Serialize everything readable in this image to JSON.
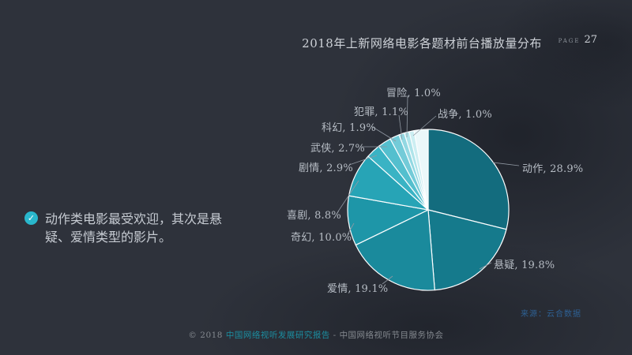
{
  "page": {
    "label": "PAGE",
    "number": "27"
  },
  "chart_data": {
    "type": "pie",
    "title": "2018年上新网络电影各题材前台播放量分布",
    "total": 100,
    "start_angle_deg": 0,
    "direction": "clockwise",
    "legend_position": "none",
    "slices": [
      {
        "label": "动作",
        "value": 28.9,
        "display": "动作, 28.9%",
        "color": "#136c7e",
        "labeled": true
      },
      {
        "label": "悬疑",
        "value": 19.8,
        "display": "悬疑, 19.8%",
        "color": "#157a8c",
        "labeled": true
      },
      {
        "label": "爱情",
        "value": 19.1,
        "display": "爱情, 19.1%",
        "color": "#1a8a9c",
        "labeled": true
      },
      {
        "label": "奇幻",
        "value": 10.0,
        "display": "奇幻, 10.0%",
        "color": "#1e96a8",
        "labeled": true
      },
      {
        "label": "喜剧",
        "value": 8.8,
        "display": "喜剧, 8.8%",
        "color": "#27a4b6",
        "labeled": true
      },
      {
        "label": "剧情",
        "value": 2.9,
        "display": "剧情, 2.9%",
        "color": "#3ab3c4",
        "labeled": true
      },
      {
        "label": "武侠",
        "value": 2.7,
        "display": "武侠, 2.7%",
        "color": "#54bfce",
        "labeled": true
      },
      {
        "label": "科幻",
        "value": 1.9,
        "display": "科幻, 1.9%",
        "color": "#73cbd8",
        "labeled": true
      },
      {
        "label": "犯罪",
        "value": 1.1,
        "display": "犯罪, 1.1%",
        "color": "#92d8e2",
        "labeled": true
      },
      {
        "label": "冒险",
        "value": 1.0,
        "display": "冒险, 1.0%",
        "color": "#afe4ea",
        "labeled": true
      },
      {
        "label": "战争",
        "value": 1.0,
        "display": "战争, 1.0%",
        "color": "#cceef2",
        "labeled": true
      },
      {
        "label": "",
        "value": 2.8,
        "display": "",
        "color": "#ebf8fa",
        "labeled": false
      }
    ]
  },
  "note": {
    "text": "动作类电影最受欢迎，其次是悬疑、爱情类型的影片。"
  },
  "source": "来源：云合数据",
  "footer": {
    "prefix": "© 2018 ",
    "report": "中国网络视听发展研究报告",
    "separator": " - ",
    "org": "中国网络视听节目服务协会"
  },
  "colors": {
    "slide_background": "#2e323b",
    "accent_teal": "#29b7cc",
    "footer_teal": "#1b8ea1",
    "source_blue": "#2e6093",
    "label_gray": "#b6bcc4"
  }
}
